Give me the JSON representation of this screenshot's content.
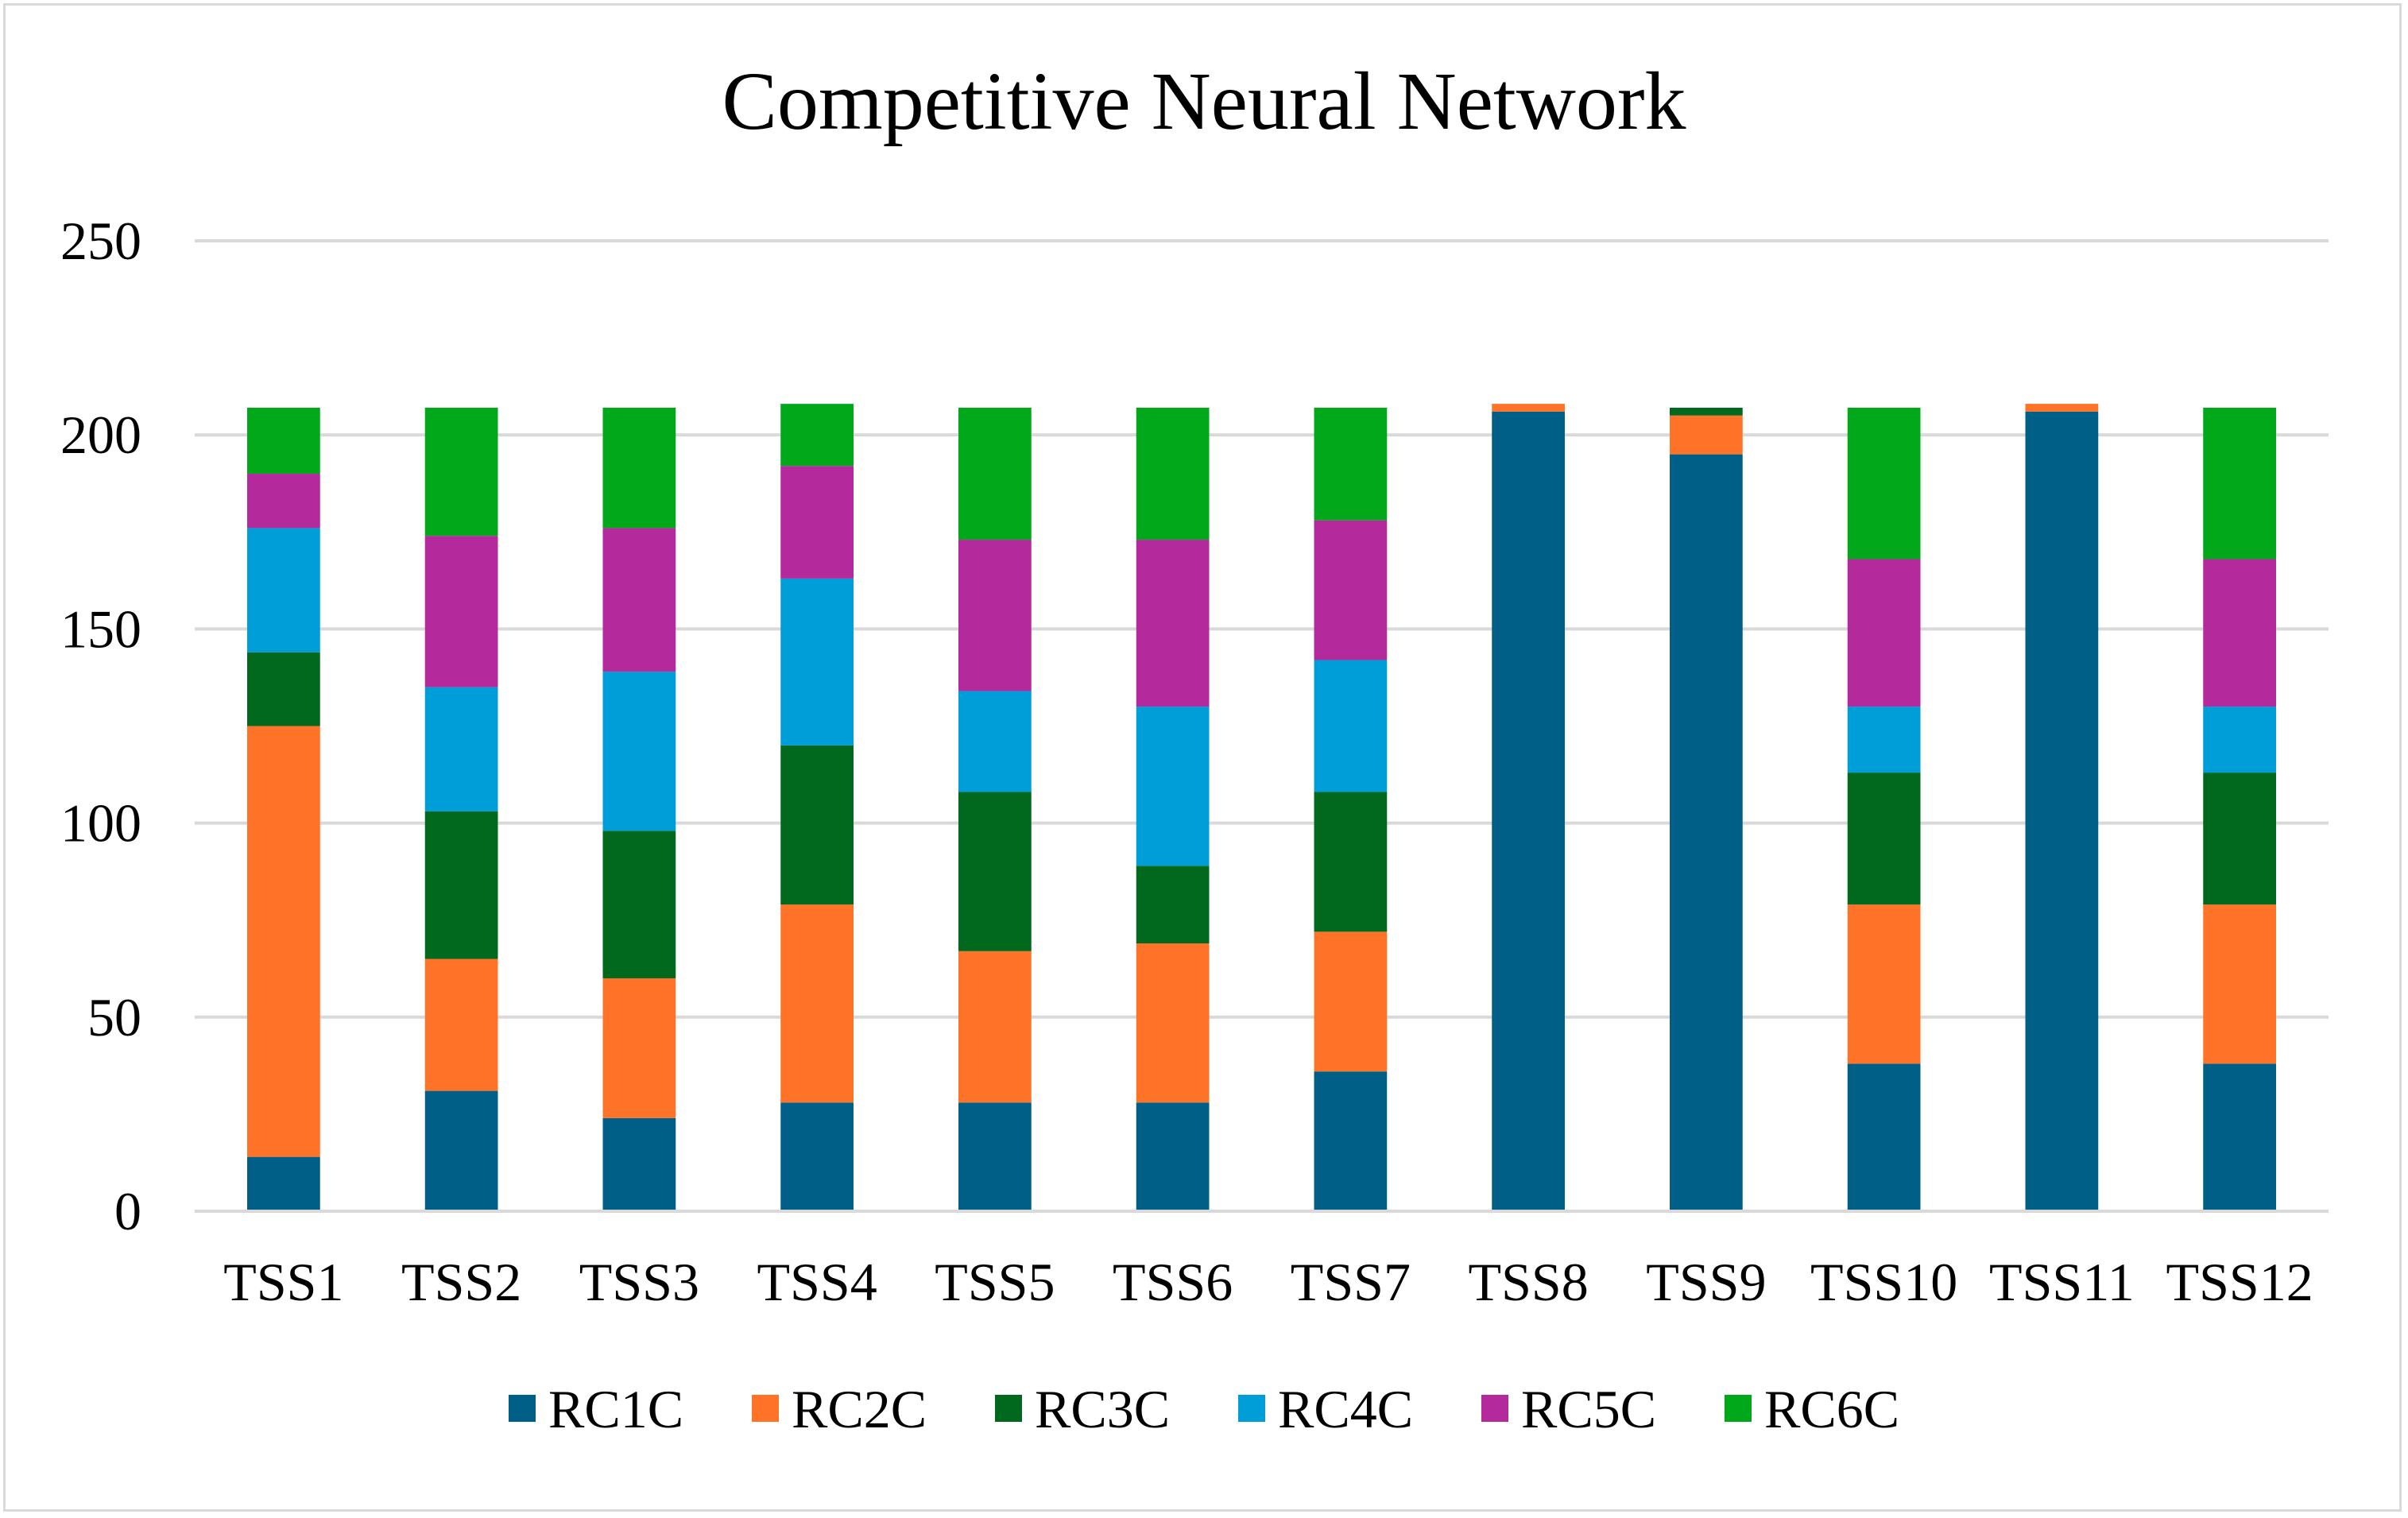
{
  "chart_data": {
    "type": "bar",
    "stacked": true,
    "title": "Competitive Neural Network",
    "xlabel": "",
    "ylabel": "",
    "ylim": [
      0,
      250
    ],
    "yticks": [
      0,
      50,
      100,
      150,
      200,
      250
    ],
    "grid": true,
    "legend_position": "bottom",
    "categories": [
      "TSS1",
      "TSS2",
      "TSS3",
      "TSS4",
      "TSS5",
      "TSS6",
      "TSS7",
      "TSS8",
      "TSS9",
      "TSS10",
      "TSS11",
      "TSS12"
    ],
    "series": [
      {
        "name": "RC1C",
        "color": "#005f87",
        "values": [
          14,
          31,
          24,
          28,
          28,
          28,
          36,
          206,
          195,
          38,
          206,
          38
        ]
      },
      {
        "name": "RC2C",
        "color": "#ff7328",
        "values": [
          111,
          34,
          36,
          51,
          39,
          41,
          36,
          2,
          10,
          41,
          2,
          41
        ]
      },
      {
        "name": "RC3C",
        "color": "#00691e",
        "values": [
          19,
          38,
          38,
          41,
          41,
          20,
          36,
          0,
          2,
          34,
          0,
          34
        ]
      },
      {
        "name": "RC4C",
        "color": "#009ed8",
        "values": [
          32,
          32,
          41,
          43,
          26,
          41,
          34,
          0,
          0,
          17,
          0,
          17
        ]
      },
      {
        "name": "RC5C",
        "color": "#b4299b",
        "values": [
          14,
          39,
          37,
          29,
          39,
          43,
          36,
          0,
          0,
          38,
          0,
          38
        ]
      },
      {
        "name": "RC6C",
        "color": "#00a81a",
        "values": [
          17,
          33,
          31,
          16,
          34,
          34,
          29,
          0,
          0,
          39,
          0,
          39
        ]
      }
    ]
  }
}
